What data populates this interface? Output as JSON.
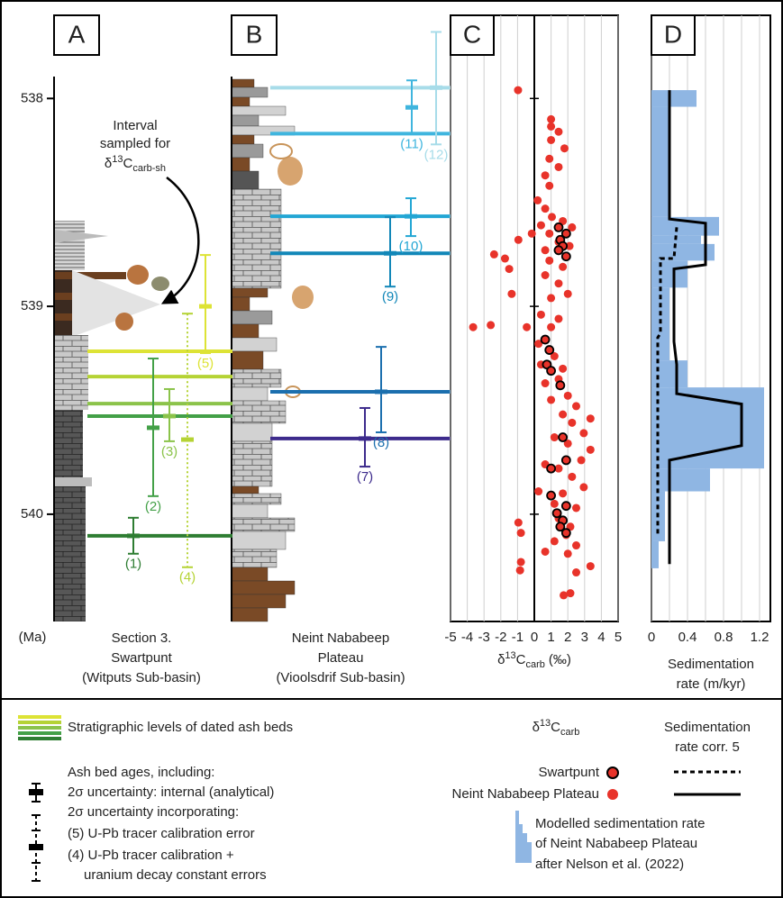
{
  "panel_labels": [
    "A",
    "B",
    "C",
    "D"
  ],
  "age_axis": {
    "unit": "(Ma)"
  },
  "sections": [
    {
      "name": [
        "Section 3.",
        "Swartpunt",
        "(Witputs Sub-basin)"
      ]
    },
    {
      "name": [
        "Neint Nababeep",
        "Plateau",
        "(Vioolsdrif Sub-basin)"
      ]
    }
  ],
  "annotation": {
    "lines": [
      "Interval",
      "sampled for"
    ],
    "symbol": "δ",
    "sup": "13",
    "main": "C",
    "sub": "carb-sh"
  },
  "ash_beds": [
    {
      "label": "(1)",
      "section": "A",
      "color": "#2e7d32",
      "level": 540.104,
      "bar": [
        540.017,
        540.104,
        540.19
      ],
      "style": "solid"
    },
    {
      "label": "(2)",
      "section": "A",
      "color": "#43a047",
      "level": 539.528,
      "bar": [
        539.251,
        539.584,
        539.913
      ],
      "style": "solid"
    },
    {
      "label": "(3)",
      "section": "A",
      "color": "#8bc34a",
      "level": 539.468,
      "bar": [
        539.398,
        539.528,
        539.649
      ],
      "style": "solid"
    },
    {
      "label": "(4)",
      "section": "A",
      "color": "#b5d334",
      "level": 539.338,
      "bar": [
        539.035,
        539.641,
        540.255
      ],
      "style": "dotted"
    },
    {
      "label": "(5)",
      "section": "A",
      "color": "#dde335",
      "level": 539.216,
      "bar": [
        538.753,
        539.0,
        539.225
      ],
      "style": "solid"
    },
    {
      "label": "(7)",
      "section": "B",
      "color": "#3d2b8c",
      "level": 539.636,
      "bar": [
        539.489,
        539.636,
        539.771
      ],
      "style": "solid"
    },
    {
      "label": "(8)",
      "section": "B",
      "color": "#1b6fae",
      "level": 539.411,
      "bar": [
        539.195,
        539.411,
        539.606
      ],
      "style": "solid"
    },
    {
      "label": "(9)",
      "section": "B",
      "color": "#1287b8",
      "level": 538.745,
      "bar": [
        538.571,
        538.745,
        538.905
      ],
      "style": "solid"
    },
    {
      "label": "(10)",
      "section": "B",
      "color": "#22a6d4",
      "level": 538.567,
      "bar": [
        538.48,
        538.567,
        538.662
      ],
      "style": "solid"
    },
    {
      "label": "(11)",
      "section": "B",
      "color": "#3fb5de",
      "level": 538.169,
      "bar": [
        537.913,
        538.043,
        538.169
      ],
      "style": "solid"
    },
    {
      "label": "(12)",
      "section": "B",
      "color": "#a7dce9",
      "level": 537.948,
      "bar": [
        537.68,
        537.948,
        538.221
      ],
      "style": "solid"
    }
  ],
  "chart_data": [
    {
      "type": "scatter",
      "panel": "C",
      "xlabel": {
        "symbol": "δ",
        "sup": "13",
        "main": "C",
        "sub": "carb",
        "unit": "(‰)"
      },
      "xlim": [
        -5,
        5
      ],
      "xticks": [
        -5,
        -4,
        -3,
        -2,
        -1,
        0,
        1,
        2,
        3,
        4,
        5
      ],
      "ylim": [
        537.6,
        540.516
      ],
      "y_inverted": true,
      "yticks": [
        538,
        539,
        540
      ],
      "grid": true,
      "series": [
        {
          "name": "Neint Nababeep Plateau",
          "color": "#e8332a",
          "x": [
            -0.97,
            1.0,
            1.0,
            1.45,
            1.0,
            1.8,
            0.9,
            1.45,
            0.65,
            0.9,
            0.2,
            0.65,
            1.05,
            1.7,
            0.4,
            2.25,
            0.9,
            1.45,
            2.1,
            0.65,
            -0.15,
            -0.95,
            -2.4,
            -1.75,
            -1.5,
            -1.35,
            0.9,
            1.7,
            0.65,
            1.45,
            2.0,
            1.0,
            0.4,
            1.45,
            1.0,
            -0.45,
            -3.65,
            -2.6,
            0.25,
            1.2,
            0.4,
            1.7,
            1.45,
            0.65,
            2.0,
            1.0,
            2.5,
            1.7,
            3.35,
            2.25,
            2.95,
            1.2,
            2.0,
            3.35,
            2.8,
            0.65,
            1.45,
            2.25,
            2.95,
            1.7,
            0.25,
            1.2,
            2.5,
            1.45,
            2.15,
            -0.95,
            -0.8,
            1.9,
            1.2,
            2.5,
            2.0,
            3.35,
            -0.8,
            -0.85,
            2.5,
            0.65,
            1.75,
            2.15
          ],
          "y": [
            537.96,
            538.1,
            538.135,
            538.16,
            538.2,
            538.24,
            538.29,
            538.33,
            538.37,
            538.42,
            538.49,
            538.53,
            538.57,
            538.59,
            538.61,
            538.62,
            538.65,
            538.69,
            538.71,
            538.73,
            538.65,
            538.68,
            538.75,
            538.77,
            538.82,
            538.94,
            538.78,
            538.81,
            538.85,
            538.89,
            538.94,
            538.96,
            539.04,
            539.06,
            539.1,
            539.1,
            539.1,
            539.09,
            539.18,
            539.24,
            539.28,
            539.3,
            539.35,
            539.37,
            539.43,
            539.45,
            539.48,
            539.52,
            539.54,
            539.56,
            539.61,
            539.63,
            539.66,
            539.69,
            539.74,
            539.76,
            539.78,
            539.82,
            539.87,
            539.9,
            539.89,
            539.95,
            539.97,
            540.02,
            540.06,
            540.04,
            540.09,
            540.1,
            540.13,
            540.15,
            540.19,
            540.25,
            540.23,
            540.27,
            540.28,
            540.18,
            540.39,
            540.38
          ]
        },
        {
          "name": "Swartpunt",
          "color": "#e8332a",
          "edgecolor": "#000000",
          "x": [
            1.45,
            1.9,
            1.55,
            1.7,
            1.45,
            1.9,
            0.65,
            0.9,
            0.75,
            1.0,
            1.55,
            1.7,
            1.9,
            1.0,
            1.0,
            1.9,
            1.35,
            1.7,
            1.55,
            1.9
          ],
          "y": [
            538.62,
            538.65,
            538.68,
            538.71,
            538.73,
            538.76,
            539.16,
            539.21,
            539.28,
            539.31,
            539.38,
            539.63,
            539.74,
            539.78,
            539.91,
            539.96,
            539.995,
            540.03,
            540.06,
            540.09
          ]
        }
      ],
      "legend_title": {
        "symbol": "δ",
        "sup": "13",
        "main": "C",
        "sub": "carb"
      }
    },
    {
      "type": "line",
      "panel": "D",
      "xlabel": [
        "Sedimentation",
        "rate (m/kyr)"
      ],
      "xlim": [
        0,
        1.32
      ],
      "xticks": [
        0,
        0.4,
        0.8,
        1.2
      ],
      "minor_xticks": [
        0.2,
        0.6,
        1.0
      ],
      "ylim": [
        537.6,
        540.516
      ],
      "y_inverted": true,
      "yticks": [
        538,
        539,
        540
      ],
      "grid": true,
      "model": {
        "name": [
          "Modelled sedimentation rate",
          "of Neint Nababeep Plateau",
          "after Nelson et al. (2022)"
        ],
        "color": "#8fb6e3",
        "bins": [
          537.96,
          538.04,
          538.57,
          538.66,
          538.7,
          538.78,
          538.91,
          539.26,
          539.39,
          539.78,
          539.89,
          540.13,
          540.26
        ],
        "values": [
          0.5,
          0.2,
          0.75,
          0.55,
          0.7,
          0.4,
          0.2,
          0.4,
          1.25,
          0.65,
          0.15,
          0.08
        ]
      },
      "series": [
        {
          "color": "#000000",
          "style": "dashed",
          "x": [
            0.28,
            0.25,
            0.1,
            0.1,
            0.07,
            0.07
          ],
          "y": [
            538.62,
            538.77,
            538.77,
            539.13,
            539.15,
            540.1
          ]
        },
        {
          "color": "#000000",
          "style": "solid",
          "x": [
            0.2,
            0.2,
            0.6,
            0.6,
            0.25,
            0.25,
            0.28,
            0.28,
            1.0,
            1.0,
            0.2,
            0.2
          ],
          "y": [
            537.96,
            538.58,
            538.6,
            538.8,
            538.82,
            539.17,
            539.28,
            539.42,
            539.47,
            539.67,
            539.74,
            540.24
          ]
        }
      ],
      "legend_title": [
        "Sedimentation",
        "rate corr. 5"
      ]
    }
  ],
  "legend": {
    "ash_levels": "Stratigraphic levels of dated ash beds",
    "ash_ages": [
      "Ash bed ages, including:",
      "2σ uncertainty: internal (analytical)",
      "2σ uncertainty incorporating:",
      "(5) U-Pb tracer calibration error",
      "(4) U-Pb tracer calibration +",
      "uranium decay constant errors"
    ]
  }
}
